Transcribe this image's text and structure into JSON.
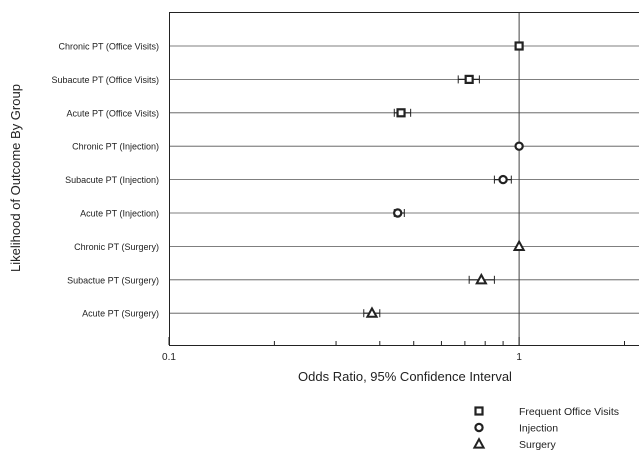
{
  "chart_data": {
    "type": "scatter",
    "subtype": "forest-plot",
    "xlabel": "Odds Ratio, 95% Confidence Interval",
    "ylabel": "Likelihood of Outcome By Group",
    "x_scale": "log",
    "xlim": [
      0.1,
      2.2
    ],
    "x_tick_labels": [
      {
        "value": 0.1,
        "label": "0.1"
      },
      {
        "value": 1,
        "label": "1"
      }
    ],
    "minor_ticks": [
      0.2,
      0.3,
      0.4,
      0.5,
      0.6,
      0.7,
      0.8,
      0.9,
      2
    ],
    "reference_line": 1,
    "grid": "horizontal",
    "legend_position": "bottom-right",
    "categories": [
      "Chronic PT (Office Visits)",
      "Subacute PT (Office Visits)",
      "Acute PT (Office Visits)",
      "Chronic PT (Injection)",
      "Subacute PT (Injection)",
      "Acute PT (Injection)",
      "Chronic PT (Surgery)",
      "Subactue PT (Surgery)",
      "Acute PT (Surgery)"
    ],
    "series": [
      {
        "name": "Frequent Office Visits",
        "marker": "square",
        "rows": [
          0,
          1,
          2
        ],
        "values": [
          1.0,
          0.72,
          0.46
        ],
        "ci_low": [
          1.0,
          0.67,
          0.44
        ],
        "ci_high": [
          1.0,
          0.77,
          0.49
        ]
      },
      {
        "name": "Injection",
        "marker": "circle",
        "rows": [
          3,
          4,
          5
        ],
        "values": [
          1.0,
          0.9,
          0.45
        ],
        "ci_low": [
          1.0,
          0.85,
          0.44
        ],
        "ci_high": [
          1.0,
          0.95,
          0.47
        ]
      },
      {
        "name": "Surgery",
        "marker": "triangle",
        "rows": [
          6,
          7,
          8
        ],
        "values": [
          1.0,
          0.78,
          0.38
        ],
        "ci_low": [
          1.0,
          0.72,
          0.36
        ],
        "ci_high": [
          1.0,
          0.85,
          0.4
        ]
      }
    ]
  }
}
